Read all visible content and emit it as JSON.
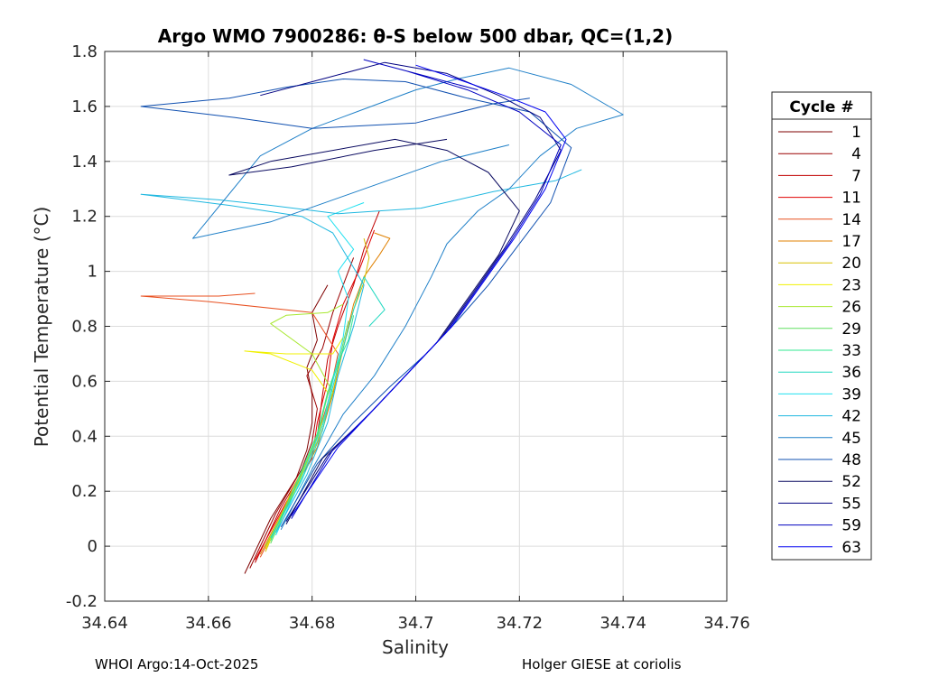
{
  "chart_data": {
    "type": "line",
    "title": "Argo WMO 7900286: θ-S below 500 dbar,  QC=(1,2)",
    "xlabel": "Salinity",
    "ylabel": "Potential Temperature (°C)",
    "xlim": [
      34.64,
      34.76
    ],
    "ylim": [
      -0.2,
      1.8
    ],
    "xticks": [
      "34.64",
      "34.66",
      "34.68",
      "34.7",
      "34.72",
      "34.74",
      "34.76"
    ],
    "yticks": [
      "-0.2",
      "0",
      "0.2",
      "0.4",
      "0.6",
      "0.8",
      "1",
      "1.2",
      "1.4",
      "1.6",
      "1.8"
    ],
    "xtick_values": [
      34.64,
      34.66,
      34.68,
      34.7,
      34.72,
      34.74,
      34.76
    ],
    "ytick_values": [
      -0.2,
      0,
      0.2,
      0.4,
      0.6,
      0.8,
      1.0,
      1.2,
      1.4,
      1.6,
      1.8
    ],
    "grid": true,
    "legend_title": "Cycle #",
    "legend_position": "right, outside plot",
    "series": [
      {
        "name": "1",
        "color": "#7f0000",
        "x": [
          34.667,
          34.672,
          34.677,
          34.679,
          34.68,
          34.68,
          34.679,
          34.681,
          34.68,
          34.683
        ],
        "y": [
          -0.1,
          0.1,
          0.25,
          0.35,
          0.45,
          0.55,
          0.65,
          0.75,
          0.85,
          0.95
        ]
      },
      {
        "name": "4",
        "color": "#9b0000",
        "x": [
          34.668,
          34.673,
          34.678,
          34.68,
          34.681,
          34.679,
          34.682,
          34.684,
          34.686,
          34.688
        ],
        "y": [
          -0.08,
          0.12,
          0.28,
          0.38,
          0.5,
          0.62,
          0.72,
          0.85,
          0.95,
          1.05
        ]
      },
      {
        "name": "7",
        "color": "#c00000",
        "x": [
          34.669,
          34.674,
          34.679,
          34.681,
          34.682,
          34.683,
          34.685,
          34.688,
          34.69,
          34.693
        ],
        "y": [
          -0.06,
          0.14,
          0.3,
          0.4,
          0.55,
          0.68,
          0.8,
          0.95,
          1.08,
          1.22
        ]
      },
      {
        "name": "11",
        "color": "#e00000",
        "x": [
          34.669,
          34.675,
          34.68,
          34.681,
          34.683,
          34.684,
          34.686,
          34.689,
          34.692
        ],
        "y": [
          -0.05,
          0.16,
          0.32,
          0.45,
          0.6,
          0.75,
          0.88,
          1.0,
          1.15
        ]
      },
      {
        "name": "14",
        "color": "#e85020",
        "x": [
          34.67,
          34.676,
          34.68,
          34.683,
          34.685,
          34.68,
          34.66,
          34.647,
          34.662,
          34.669
        ],
        "y": [
          -0.04,
          0.18,
          0.34,
          0.52,
          0.7,
          0.85,
          0.89,
          0.91,
          0.91,
          0.92
        ]
      },
      {
        "name": "17",
        "color": "#e08000",
        "x": [
          34.67,
          34.676,
          34.681,
          34.684,
          34.686,
          34.688,
          34.69,
          34.693,
          34.695,
          34.692
        ],
        "y": [
          -0.03,
          0.19,
          0.36,
          0.55,
          0.72,
          0.88,
          0.98,
          1.06,
          1.12,
          1.14
        ]
      },
      {
        "name": "20",
        "color": "#d8c000",
        "x": [
          34.671,
          34.676,
          34.681,
          34.684,
          34.686,
          34.688,
          34.69,
          34.691,
          34.69
        ],
        "y": [
          -0.02,
          0.2,
          0.38,
          0.56,
          0.72,
          0.86,
          0.96,
          1.05,
          1.12
        ]
      },
      {
        "name": "23",
        "color": "#f0f000",
        "x": [
          34.671,
          34.677,
          34.681,
          34.683,
          34.68,
          34.672,
          34.667,
          34.675,
          34.684,
          34.686
        ],
        "y": [
          -0.01,
          0.21,
          0.4,
          0.56,
          0.64,
          0.7,
          0.71,
          0.7,
          0.7,
          0.76
        ]
      },
      {
        "name": "26",
        "color": "#a8e830",
        "x": [
          34.671,
          34.677,
          34.681,
          34.684,
          34.68,
          34.672,
          34.675,
          34.683,
          34.686
        ],
        "y": [
          0.0,
          0.22,
          0.4,
          0.56,
          0.7,
          0.81,
          0.84,
          0.85,
          0.88
        ]
      },
      {
        "name": "29",
        "color": "#60e060",
        "x": [
          34.672,
          34.677,
          34.681,
          34.683,
          34.685,
          34.686,
          34.687
        ],
        "y": [
          0.01,
          0.22,
          0.4,
          0.55,
          0.66,
          0.74,
          0.82
        ]
      },
      {
        "name": "33",
        "color": "#30e890",
        "x": [
          34.672,
          34.677,
          34.681,
          34.683,
          34.685,
          34.687,
          34.688
        ],
        "y": [
          0.02,
          0.23,
          0.41,
          0.56,
          0.67,
          0.75,
          0.84
        ]
      },
      {
        "name": "36",
        "color": "#20d8c0",
        "x": [
          34.672,
          34.678,
          34.682,
          34.684,
          34.686,
          34.688,
          34.69,
          34.694,
          34.691
        ],
        "y": [
          0.03,
          0.24,
          0.42,
          0.58,
          0.72,
          0.86,
          0.98,
          0.86,
          0.8
        ]
      },
      {
        "name": "39",
        "color": "#20e0f0",
        "x": [
          34.673,
          34.678,
          34.682,
          34.684,
          34.686,
          34.687,
          34.685,
          34.688,
          34.683,
          34.69
        ],
        "y": [
          0.04,
          0.25,
          0.44,
          0.6,
          0.76,
          0.9,
          1.0,
          1.08,
          1.2,
          1.25
        ]
      },
      {
        "name": "42",
        "color": "#20b8e0",
        "x": [
          34.673,
          34.679,
          34.683,
          34.685,
          34.688,
          34.69,
          34.684,
          34.678,
          34.664,
          34.647,
          34.662,
          34.672,
          34.685,
          34.701,
          34.715,
          34.727,
          34.732
        ],
        "y": [
          0.05,
          0.26,
          0.45,
          0.62,
          0.8,
          0.95,
          1.14,
          1.2,
          1.24,
          1.28,
          1.26,
          1.24,
          1.21,
          1.23,
          1.29,
          1.33,
          1.37
        ]
      },
      {
        "name": "45",
        "color": "#2080c8",
        "x": [
          34.674,
          34.68,
          34.686,
          34.692,
          34.698,
          34.703,
          34.706,
          34.712,
          34.718,
          34.724,
          34.731,
          34.74,
          34.73,
          34.718,
          34.708,
          34.7,
          34.69,
          34.68,
          34.67,
          34.657,
          34.672,
          34.69,
          34.705,
          34.718
        ],
        "y": [
          0.06,
          0.28,
          0.48,
          0.62,
          0.8,
          0.98,
          1.1,
          1.22,
          1.3,
          1.42,
          1.52,
          1.57,
          1.68,
          1.74,
          1.7,
          1.66,
          1.59,
          1.52,
          1.42,
          1.12,
          1.18,
          1.3,
          1.4,
          1.46
        ]
      },
      {
        "name": "48",
        "color": "#1050b0",
        "x": [
          34.674,
          34.681,
          34.688,
          34.695,
          34.702,
          34.708,
          34.714,
          34.72,
          34.726,
          34.73,
          34.722,
          34.71,
          34.698,
          34.686,
          34.675,
          34.664,
          34.647,
          34.665,
          34.68,
          34.7,
          34.715,
          34.722
        ],
        "y": [
          0.07,
          0.3,
          0.45,
          0.58,
          0.7,
          0.82,
          0.95,
          1.1,
          1.25,
          1.45,
          1.58,
          1.63,
          1.69,
          1.7,
          1.67,
          1.63,
          1.6,
          1.56,
          1.52,
          1.54,
          1.61,
          1.63
        ]
      },
      {
        "name": "52",
        "color": "#0a0a60",
        "x": [
          34.675,
          34.682,
          34.69,
          34.697,
          34.704,
          34.71,
          34.716,
          34.72,
          34.714,
          34.706,
          34.696,
          34.684,
          34.672,
          34.664,
          34.676,
          34.692,
          34.706
        ],
        "y": [
          0.08,
          0.32,
          0.46,
          0.6,
          0.74,
          0.9,
          1.06,
          1.22,
          1.36,
          1.44,
          1.48,
          1.44,
          1.4,
          1.35,
          1.38,
          1.44,
          1.48
        ]
      },
      {
        "name": "55",
        "color": "#000080",
        "x": [
          34.675,
          34.683,
          34.691,
          34.698,
          34.705,
          34.711,
          34.717,
          34.723,
          34.728,
          34.724,
          34.716,
          34.706,
          34.694,
          34.682,
          34.67
        ],
        "y": [
          0.09,
          0.33,
          0.48,
          0.62,
          0.76,
          0.92,
          1.08,
          1.26,
          1.44,
          1.56,
          1.64,
          1.72,
          1.76,
          1.7,
          1.64
        ]
      },
      {
        "name": "59",
        "color": "#0000c0",
        "x": [
          34.676,
          34.684,
          34.692,
          34.699,
          34.706,
          34.712,
          34.718,
          34.724,
          34.728,
          34.72,
          34.71,
          34.698,
          34.69,
          34.7,
          34.712
        ],
        "y": [
          0.1,
          0.35,
          0.5,
          0.64,
          0.78,
          0.94,
          1.1,
          1.28,
          1.46,
          1.58,
          1.66,
          1.73,
          1.77,
          1.72,
          1.66
        ]
      },
      {
        "name": "63",
        "color": "#0000f0",
        "x": [
          34.676,
          34.685,
          34.693,
          34.7,
          34.707,
          34.713,
          34.719,
          34.725,
          34.729,
          34.725,
          34.717,
          34.708,
          34.7
        ],
        "y": [
          0.11,
          0.36,
          0.52,
          0.66,
          0.8,
          0.96,
          1.12,
          1.3,
          1.48,
          1.58,
          1.64,
          1.7,
          1.75
        ]
      }
    ]
  },
  "footer": {
    "left": "WHOI Argo:14-Oct-2025",
    "right": "Holger GIESE at coriolis"
  }
}
